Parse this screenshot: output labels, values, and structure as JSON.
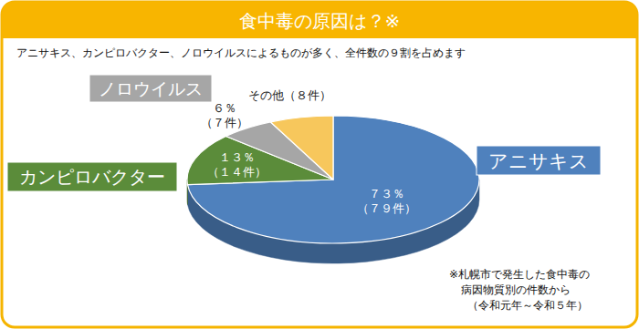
{
  "chart_data": {
    "type": "pie",
    "title": "食中毒の原因は？※",
    "subtitle": "アニサキス、カンピロバクター、ノロウイルスによるものが多く、全件数の９割を占めます",
    "annotations": [
      "※札幌市で発生した食中毒の",
      "病因物質別の件数から",
      "（令和元年～令和５年）"
    ],
    "categories": [
      "アニサキス",
      "カンピロバクター",
      "ノロウイルス",
      "その他"
    ],
    "values": [
      73,
      13,
      6,
      7
    ],
    "value_labels": [
      "７３％",
      "１３％",
      "６％",
      null
    ],
    "count_labels": [
      "（７９件）",
      "（１４件）",
      "（７件）",
      "（８件）"
    ],
    "colors": [
      "#4f81bd",
      "#5b8c3a",
      "#a6a6a6",
      "#f7c75c"
    ],
    "data_labels": true
  }
}
